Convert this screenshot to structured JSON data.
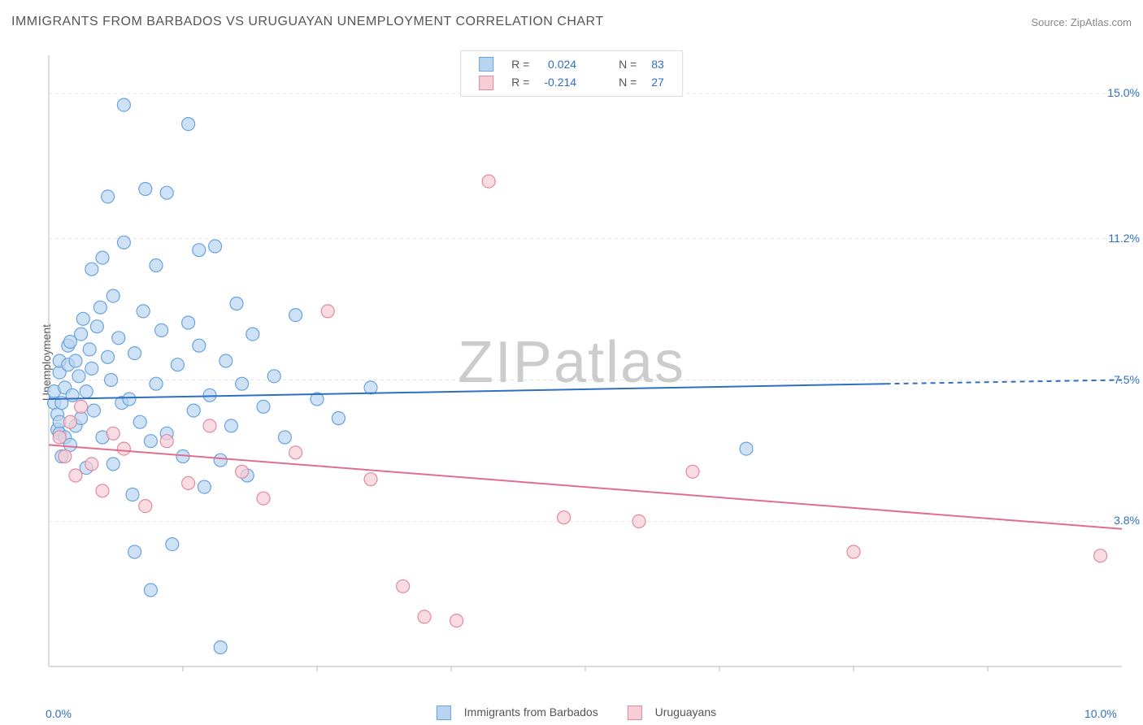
{
  "title": "IMMIGRANTS FROM BARBADOS VS URUGUAYAN UNEMPLOYMENT CORRELATION CHART",
  "source": "Source: ZipAtlas.com",
  "ylabel": "Unemployment",
  "watermark": {
    "zip": "ZIP",
    "atlas": "atlas"
  },
  "chart": {
    "type": "scatter",
    "xlim": [
      0.0,
      10.0
    ],
    "ylim": [
      0.0,
      16.0
    ],
    "xticks": [
      {
        "pos": 0.0,
        "label": "0.0%"
      },
      {
        "pos": 10.0,
        "label": "10.0%"
      }
    ],
    "yticks": [
      {
        "pos": 3.8,
        "label": "3.8%"
      },
      {
        "pos": 7.5,
        "label": "7.5%"
      },
      {
        "pos": 11.2,
        "label": "11.2%"
      },
      {
        "pos": 15.0,
        "label": "15.0%"
      }
    ],
    "x_minor_ticks": [
      1.25,
      2.5,
      3.75,
      5.0,
      6.25,
      7.5,
      8.75
    ],
    "grid_color": "#e5e5e5",
    "axis_color": "#bbbbbb",
    "background_color": "#ffffff",
    "marker_radius": 8,
    "marker_stroke_width": 1.2,
    "trend_line_width": 2,
    "series": [
      {
        "name": "Immigrants from Barbados",
        "fill": "#b9d4f1",
        "stroke": "#6aa3de",
        "line_color": "#2f6fc1",
        "R": "0.024",
        "N": "83",
        "trend": {
          "x1": 0.0,
          "y1": 7.0,
          "x2": 7.8,
          "y2": 7.4,
          "x2_dash": 10.0,
          "y2_dash": 7.5
        },
        "points": [
          [
            0.05,
            6.9
          ],
          [
            0.05,
            7.2
          ],
          [
            0.08,
            6.2
          ],
          [
            0.08,
            6.6
          ],
          [
            0.1,
            6.4
          ],
          [
            0.1,
            7.7
          ],
          [
            0.1,
            8.0
          ],
          [
            0.1,
            6.1
          ],
          [
            0.12,
            5.5
          ],
          [
            0.12,
            6.9
          ],
          [
            0.15,
            6.0
          ],
          [
            0.15,
            7.3
          ],
          [
            0.18,
            8.4
          ],
          [
            0.18,
            7.9
          ],
          [
            0.2,
            8.5
          ],
          [
            0.2,
            5.8
          ],
          [
            0.22,
            7.1
          ],
          [
            0.25,
            6.3
          ],
          [
            0.25,
            8.0
          ],
          [
            0.28,
            7.6
          ],
          [
            0.3,
            8.7
          ],
          [
            0.3,
            6.5
          ],
          [
            0.32,
            9.1
          ],
          [
            0.35,
            7.2
          ],
          [
            0.35,
            5.2
          ],
          [
            0.38,
            8.3
          ],
          [
            0.4,
            10.4
          ],
          [
            0.4,
            7.8
          ],
          [
            0.42,
            6.7
          ],
          [
            0.45,
            8.9
          ],
          [
            0.48,
            9.4
          ],
          [
            0.5,
            6.0
          ],
          [
            0.5,
            10.7
          ],
          [
            0.55,
            8.1
          ],
          [
            0.55,
            12.3
          ],
          [
            0.58,
            7.5
          ],
          [
            0.6,
            9.7
          ],
          [
            0.6,
            5.3
          ],
          [
            0.65,
            8.6
          ],
          [
            0.68,
            6.9
          ],
          [
            0.7,
            11.1
          ],
          [
            0.7,
            14.7
          ],
          [
            0.75,
            7.0
          ],
          [
            0.78,
            4.5
          ],
          [
            0.8,
            8.2
          ],
          [
            0.8,
            3.0
          ],
          [
            0.85,
            6.4
          ],
          [
            0.88,
            9.3
          ],
          [
            0.9,
            12.5
          ],
          [
            0.95,
            5.9
          ],
          [
            0.95,
            2.0
          ],
          [
            1.0,
            7.4
          ],
          [
            1.0,
            10.5
          ],
          [
            1.05,
            8.8
          ],
          [
            1.1,
            6.1
          ],
          [
            1.1,
            12.4
          ],
          [
            1.15,
            3.2
          ],
          [
            1.2,
            7.9
          ],
          [
            1.25,
            5.5
          ],
          [
            1.3,
            9.0
          ],
          [
            1.3,
            14.2
          ],
          [
            1.35,
            6.7
          ],
          [
            1.4,
            8.4
          ],
          [
            1.4,
            10.9
          ],
          [
            1.45,
            4.7
          ],
          [
            1.5,
            7.1
          ],
          [
            1.55,
            11.0
          ],
          [
            1.6,
            5.4
          ],
          [
            1.6,
            0.5
          ],
          [
            1.65,
            8.0
          ],
          [
            1.7,
            6.3
          ],
          [
            1.75,
            9.5
          ],
          [
            1.8,
            7.4
          ],
          [
            1.85,
            5.0
          ],
          [
            1.9,
            8.7
          ],
          [
            2.0,
            6.8
          ],
          [
            2.1,
            7.6
          ],
          [
            2.2,
            6.0
          ],
          [
            2.3,
            9.2
          ],
          [
            2.5,
            7.0
          ],
          [
            2.7,
            6.5
          ],
          [
            3.0,
            7.3
          ],
          [
            6.5,
            5.7
          ]
        ]
      },
      {
        "name": "Uruguayans",
        "fill": "#f7cdd6",
        "stroke": "#e089a0",
        "line_color": "#e26e8e",
        "R": "-0.214",
        "N": "27",
        "trend": {
          "x1": 0.0,
          "y1": 5.8,
          "x2": 10.0,
          "y2": 3.6,
          "x2_dash": 10.0,
          "y2_dash": 3.6
        },
        "points": [
          [
            0.1,
            6.0
          ],
          [
            0.15,
            5.5
          ],
          [
            0.2,
            6.4
          ],
          [
            0.25,
            5.0
          ],
          [
            0.3,
            6.8
          ],
          [
            0.4,
            5.3
          ],
          [
            0.5,
            4.6
          ],
          [
            0.6,
            6.1
          ],
          [
            0.7,
            5.7
          ],
          [
            0.9,
            4.2
          ],
          [
            1.1,
            5.9
          ],
          [
            1.3,
            4.8
          ],
          [
            1.5,
            6.3
          ],
          [
            1.8,
            5.1
          ],
          [
            2.0,
            4.4
          ],
          [
            2.3,
            5.6
          ],
          [
            2.6,
            9.3
          ],
          [
            3.0,
            4.9
          ],
          [
            3.3,
            2.1
          ],
          [
            3.5,
            1.3
          ],
          [
            3.8,
            1.2
          ],
          [
            4.1,
            12.7
          ],
          [
            4.8,
            3.9
          ],
          [
            5.5,
            3.8
          ],
          [
            6.0,
            5.1
          ],
          [
            7.5,
            3.0
          ],
          [
            9.8,
            2.9
          ]
        ]
      }
    ]
  },
  "legend_top": {
    "rows": [
      {
        "swatch_fill": "#b9d4f1",
        "swatch_stroke": "#6aa3de",
        "r_label": "R =",
        "r_val": "0.024",
        "n_label": "N =",
        "n_val": "83"
      },
      {
        "swatch_fill": "#f7cdd6",
        "swatch_stroke": "#e089a0",
        "r_label": "R =",
        "r_val": "-0.214",
        "n_label": "N =",
        "n_val": "27"
      }
    ],
    "value_color": "#2f6fc1",
    "label_color": "#555555"
  },
  "colors": {
    "tick_label": "#2f6fc1",
    "title": "#555555"
  }
}
